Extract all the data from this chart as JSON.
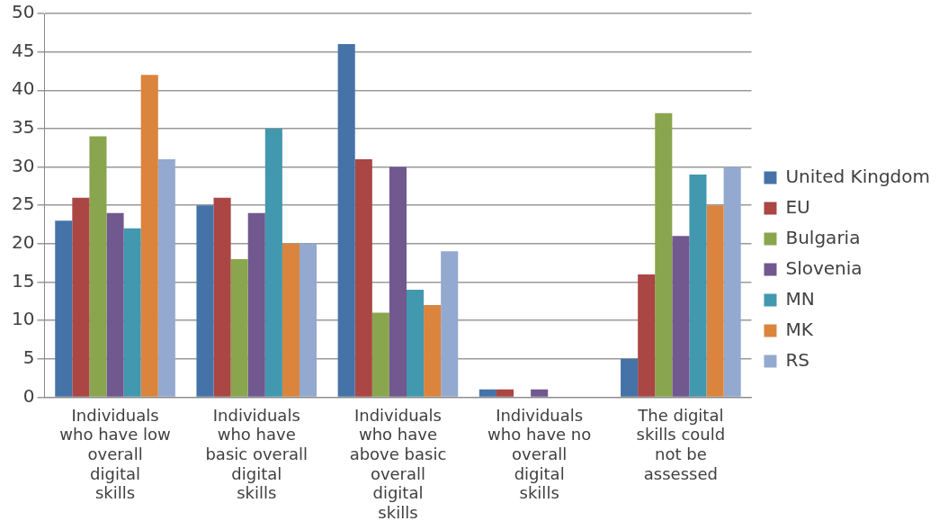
{
  "chart_data": {
    "type": "bar",
    "categories": [
      "Individuals who have low overall digital skills",
      "Individuals who have basic overall digital skills",
      "Individuals who have above basic overall digital skills",
      "Individuals who have no overall digital skills",
      "The digital skills could not be assessed"
    ],
    "series": [
      {
        "name": "United Kingdom",
        "color": "#4572a7",
        "values": [
          23,
          25,
          46,
          1,
          5
        ]
      },
      {
        "name": "EU",
        "color": "#aa4643",
        "values": [
          26,
          26,
          31,
          1,
          16
        ]
      },
      {
        "name": "Bulgaria",
        "color": "#89a54e",
        "values": [
          34,
          18,
          11,
          0,
          37
        ]
      },
      {
        "name": "Slovenia",
        "color": "#71588f",
        "values": [
          24,
          24,
          30,
          1,
          21
        ]
      },
      {
        "name": "MN",
        "color": "#4198af",
        "values": [
          22,
          35,
          14,
          0,
          29
        ]
      },
      {
        "name": "MK",
        "color": "#db843d",
        "values": [
          42,
          20,
          12,
          0,
          25
        ]
      },
      {
        "name": "RS",
        "color": "#93a9cf",
        "values": [
          31,
          20,
          19,
          0,
          30
        ]
      }
    ],
    "ylim": [
      0,
      50
    ],
    "yticks": [
      0,
      5,
      10,
      15,
      20,
      25,
      30,
      35,
      40,
      45,
      50
    ],
    "grid": "y",
    "legend": "right"
  }
}
